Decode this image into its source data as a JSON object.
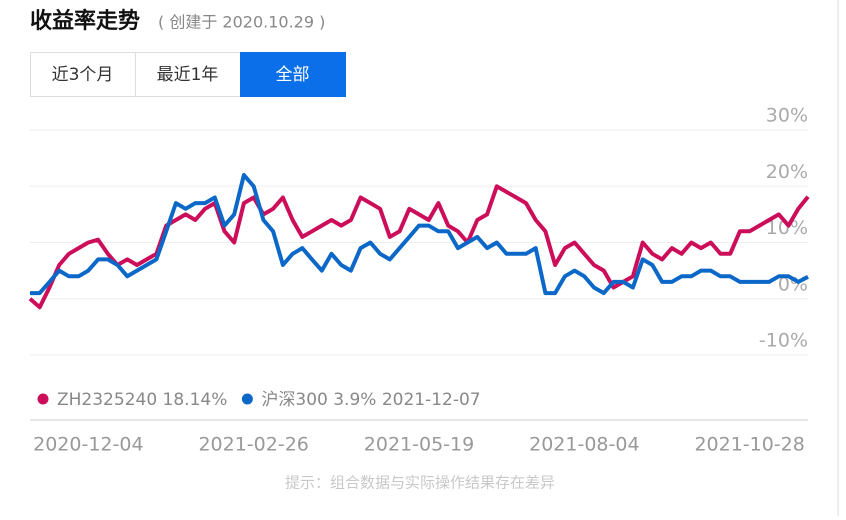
{
  "header": {
    "title": "收益率走势",
    "subtitle": "( 创建于 2020.10.29 )"
  },
  "tabs": [
    "近3个月",
    "最近1年",
    "全部"
  ],
  "active_tab": 2,
  "footer_note": "提示：组合数据与实际操作结果存在差异",
  "chart_data": {
    "type": "line",
    "categories": [
      null,
      null,
      null,
      null,
      null,
      null,
      "2020-12-04",
      null,
      null,
      null,
      null,
      null,
      null,
      null,
      null,
      null,
      null,
      null,
      null,
      null,
      null,
      null,
      null,
      "2021-02-26",
      null,
      null,
      null,
      null,
      null,
      null,
      null,
      null,
      null,
      null,
      null,
      null,
      null,
      null,
      null,
      null,
      "2021-05-19",
      null,
      null,
      null,
      null,
      null,
      null,
      null,
      null,
      null,
      null,
      null,
      null,
      null,
      null,
      null,
      null,
      "2021-08-04",
      null,
      null,
      null,
      null,
      null,
      null,
      null,
      null,
      null,
      null,
      null,
      null,
      null,
      null,
      null,
      null,
      "2021-10-28",
      null,
      null,
      null,
      null,
      null,
      null
    ],
    "series": [
      {
        "name": "ZH2325240 18.14%",
        "color": "#cc0e5a",
        "values": [
          0,
          -1.5,
          2,
          6,
          8,
          9,
          10,
          10.5,
          8,
          6,
          7,
          6,
          7,
          8,
          13,
          14,
          15,
          14,
          16,
          17,
          12,
          10,
          17,
          18,
          15,
          16,
          18,
          14,
          11,
          12,
          13,
          14,
          13,
          14,
          18,
          17,
          16,
          11,
          12,
          16,
          15,
          14,
          17,
          13,
          12,
          10,
          14,
          15,
          20,
          19,
          18,
          17,
          14,
          12,
          6,
          9,
          10,
          8,
          6,
          5,
          2,
          3,
          4,
          10,
          8,
          7,
          9,
          8,
          10,
          9,
          10,
          8,
          8,
          12,
          12,
          13,
          14,
          15,
          13,
          16,
          18.14
        ]
      },
      {
        "name": "沪深300 3.9% 2021-12-07",
        "color": "#0b68c8",
        "values": [
          1,
          1,
          3,
          5,
          4,
          4,
          5,
          7,
          7,
          6,
          4,
          5,
          6,
          7,
          12,
          17,
          16,
          17,
          17,
          18,
          13,
          15,
          22,
          20,
          14,
          12,
          6,
          8,
          9,
          7,
          5,
          8,
          6,
          5,
          9,
          10,
          8,
          7,
          9,
          11,
          13,
          13,
          12,
          12,
          9,
          10,
          11,
          9,
          10,
          8,
          8,
          8,
          9,
          1,
          1,
          4,
          5,
          4,
          2,
          1,
          3,
          3,
          2,
          7,
          6,
          3,
          3,
          4,
          4,
          5,
          5,
          4,
          4,
          3,
          3,
          3,
          3,
          4,
          4,
          3,
          3.9
        ]
      }
    ],
    "ylim": [
      -10,
      30
    ],
    "yticks": [
      {
        "value": -10,
        "label": "-10%"
      },
      {
        "value": 0,
        "label": "0%"
      },
      {
        "value": 10,
        "label": "10%"
      },
      {
        "value": 20,
        "label": "20%"
      },
      {
        "value": 30,
        "label": "30%"
      }
    ],
    "grid": true
  }
}
